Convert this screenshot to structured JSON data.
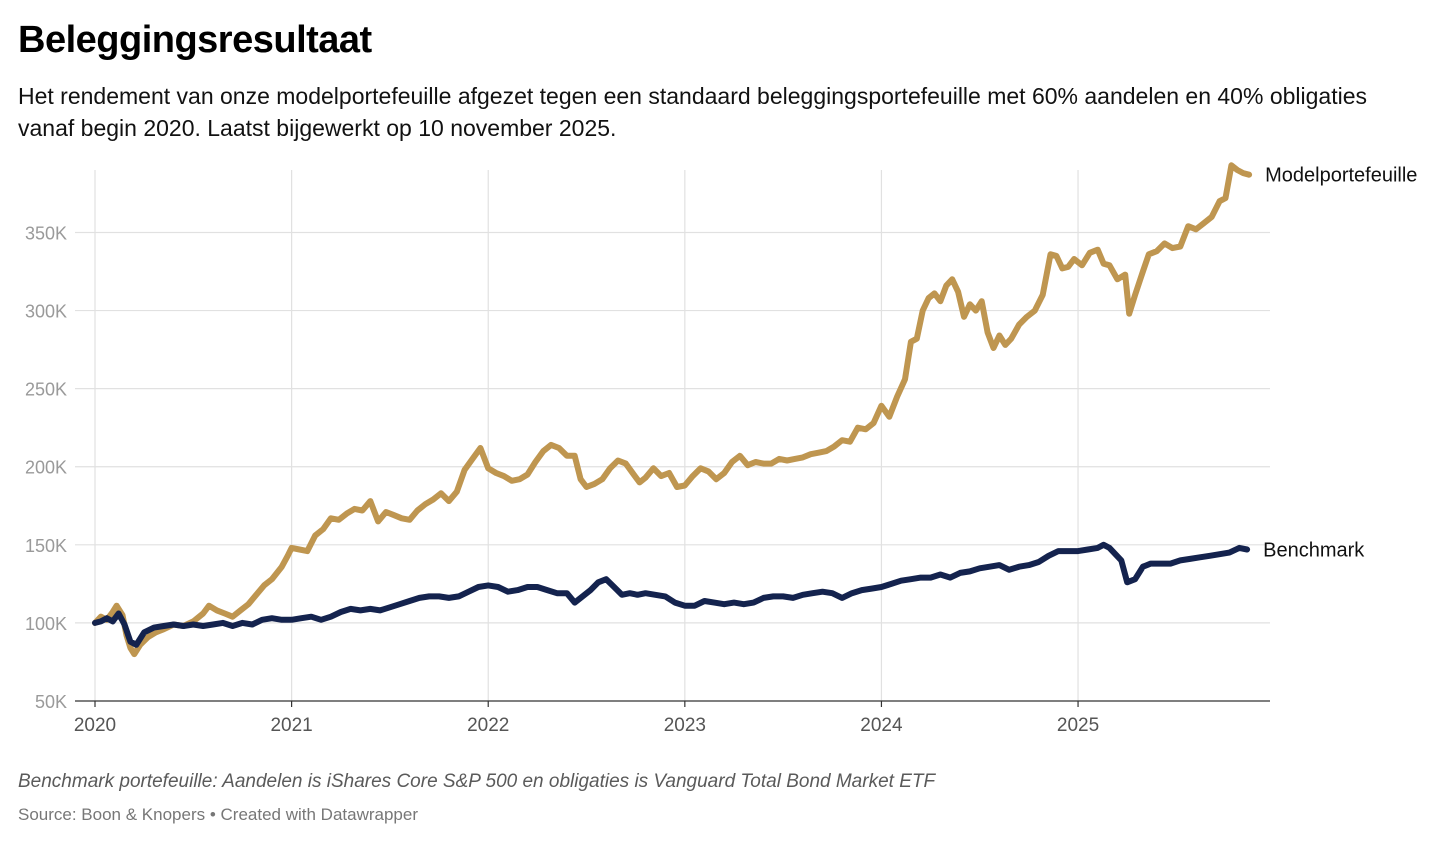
{
  "chart_data": {
    "type": "line",
    "title": "Beleggingsresultaat",
    "subtitle": "Het rendement van onze modelportefeuille afgezet tegen een standaard beleggingsportefeuille met 60% aandelen en 40% obligaties vanaf begin 2020. Laatst bijgewerkt op 10 november 2025.",
    "xlabel": "",
    "ylabel": "",
    "xlim": [
      2020.0,
      2025.9
    ],
    "ylim": [
      50000,
      390000
    ],
    "x_ticks": [
      2020,
      2021,
      2022,
      2023,
      2024,
      2025
    ],
    "x_tick_labels": [
      "2020",
      "2021",
      "2022",
      "2023",
      "2024",
      "2025"
    ],
    "y_ticks": [
      50000,
      100000,
      150000,
      200000,
      250000,
      300000,
      350000
    ],
    "y_tick_labels": [
      "50K",
      "100K",
      "150K",
      "200K",
      "250K",
      "300K",
      "350K"
    ],
    "grid": true,
    "legend": "direct labels at line ends (right)",
    "series": [
      {
        "name": "Modelportefeuille",
        "color": "#bf9650",
        "points": [
          [
            2020.0,
            100000
          ],
          [
            2020.03,
            104000
          ],
          [
            2020.06,
            102000
          ],
          [
            2020.09,
            107000
          ],
          [
            2020.11,
            111000
          ],
          [
            2020.14,
            105000
          ],
          [
            2020.16,
            92000
          ],
          [
            2020.18,
            84000
          ],
          [
            2020.2,
            80000
          ],
          [
            2020.23,
            86000
          ],
          [
            2020.27,
            91000
          ],
          [
            2020.31,
            94000
          ],
          [
            2020.35,
            96000
          ],
          [
            2020.4,
            99000
          ],
          [
            2020.45,
            98000
          ],
          [
            2020.5,
            101000
          ],
          [
            2020.55,
            106000
          ],
          [
            2020.58,
            111000
          ],
          [
            2020.62,
            108000
          ],
          [
            2020.66,
            106000
          ],
          [
            2020.7,
            104000
          ],
          [
            2020.74,
            108000
          ],
          [
            2020.78,
            112000
          ],
          [
            2020.82,
            118000
          ],
          [
            2020.86,
            124000
          ],
          [
            2020.9,
            128000
          ],
          [
            2020.95,
            136000
          ],
          [
            2020.98,
            143000
          ],
          [
            2021.0,
            148000
          ],
          [
            2021.04,
            147000
          ],
          [
            2021.08,
            146000
          ],
          [
            2021.12,
            156000
          ],
          [
            2021.16,
            160000
          ],
          [
            2021.2,
            167000
          ],
          [
            2021.24,
            166000
          ],
          [
            2021.28,
            170000
          ],
          [
            2021.32,
            173000
          ],
          [
            2021.36,
            172000
          ],
          [
            2021.4,
            178000
          ],
          [
            2021.44,
            165000
          ],
          [
            2021.48,
            171000
          ],
          [
            2021.52,
            169000
          ],
          [
            2021.56,
            167000
          ],
          [
            2021.6,
            166000
          ],
          [
            2021.64,
            172000
          ],
          [
            2021.68,
            176000
          ],
          [
            2021.72,
            179000
          ],
          [
            2021.76,
            183000
          ],
          [
            2021.8,
            178000
          ],
          [
            2021.84,
            184000
          ],
          [
            2021.88,
            198000
          ],
          [
            2021.92,
            205000
          ],
          [
            2021.96,
            212000
          ],
          [
            2022.0,
            199000
          ],
          [
            2022.04,
            196000
          ],
          [
            2022.08,
            194000
          ],
          [
            2022.12,
            191000
          ],
          [
            2022.16,
            192000
          ],
          [
            2022.2,
            195000
          ],
          [
            2022.24,
            203000
          ],
          [
            2022.28,
            210000
          ],
          [
            2022.32,
            214000
          ],
          [
            2022.36,
            212000
          ],
          [
            2022.4,
            207000
          ],
          [
            2022.44,
            207000
          ],
          [
            2022.47,
            192000
          ],
          [
            2022.5,
            187000
          ],
          [
            2022.54,
            189000
          ],
          [
            2022.58,
            192000
          ],
          [
            2022.62,
            199000
          ],
          [
            2022.66,
            204000
          ],
          [
            2022.7,
            202000
          ],
          [
            2022.74,
            195000
          ],
          [
            2022.77,
            190000
          ],
          [
            2022.8,
            193000
          ],
          [
            2022.84,
            199000
          ],
          [
            2022.88,
            194000
          ],
          [
            2022.92,
            196000
          ],
          [
            2022.96,
            187000
          ],
          [
            2023.0,
            188000
          ],
          [
            2023.04,
            194000
          ],
          [
            2023.08,
            199000
          ],
          [
            2023.12,
            197000
          ],
          [
            2023.16,
            192000
          ],
          [
            2023.2,
            196000
          ],
          [
            2023.24,
            203000
          ],
          [
            2023.28,
            207000
          ],
          [
            2023.32,
            201000
          ],
          [
            2023.36,
            203000
          ],
          [
            2023.4,
            202000
          ],
          [
            2023.44,
            202000
          ],
          [
            2023.48,
            205000
          ],
          [
            2023.52,
            204000
          ],
          [
            2023.56,
            205000
          ],
          [
            2023.6,
            206000
          ],
          [
            2023.64,
            208000
          ],
          [
            2023.68,
            209000
          ],
          [
            2023.72,
            210000
          ],
          [
            2023.76,
            213000
          ],
          [
            2023.8,
            217000
          ],
          [
            2023.84,
            216000
          ],
          [
            2023.88,
            225000
          ],
          [
            2023.92,
            224000
          ],
          [
            2023.96,
            228000
          ],
          [
            2024.0,
            239000
          ],
          [
            2024.04,
            232000
          ],
          [
            2024.08,
            245000
          ],
          [
            2024.12,
            256000
          ],
          [
            2024.15,
            280000
          ],
          [
            2024.18,
            282000
          ],
          [
            2024.21,
            300000
          ],
          [
            2024.24,
            308000
          ],
          [
            2024.27,
            311000
          ],
          [
            2024.3,
            306000
          ],
          [
            2024.33,
            316000
          ],
          [
            2024.36,
            320000
          ],
          [
            2024.39,
            312000
          ],
          [
            2024.42,
            296000
          ],
          [
            2024.45,
            304000
          ],
          [
            2024.48,
            300000
          ],
          [
            2024.51,
            306000
          ],
          [
            2024.54,
            286000
          ],
          [
            2024.57,
            276000
          ],
          [
            2024.6,
            284000
          ],
          [
            2024.63,
            278000
          ],
          [
            2024.66,
            282000
          ],
          [
            2024.7,
            291000
          ],
          [
            2024.74,
            296000
          ],
          [
            2024.78,
            300000
          ],
          [
            2024.82,
            310000
          ],
          [
            2024.86,
            336000
          ],
          [
            2024.89,
            335000
          ],
          [
            2024.92,
            327000
          ],
          [
            2024.95,
            328000
          ],
          [
            2024.98,
            333000
          ],
          [
            2025.02,
            329000
          ],
          [
            2025.06,
            337000
          ],
          [
            2025.1,
            339000
          ],
          [
            2025.13,
            330000
          ],
          [
            2025.16,
            329000
          ],
          [
            2025.2,
            320000
          ],
          [
            2025.24,
            323000
          ],
          [
            2025.26,
            298000
          ],
          [
            2025.29,
            310000
          ],
          [
            2025.33,
            325000
          ],
          [
            2025.36,
            336000
          ],
          [
            2025.4,
            338000
          ],
          [
            2025.44,
            343000
          ],
          [
            2025.48,
            340000
          ],
          [
            2025.52,
            341000
          ],
          [
            2025.56,
            354000
          ],
          [
            2025.6,
            352000
          ],
          [
            2025.64,
            356000
          ],
          [
            2025.68,
            360000
          ],
          [
            2025.72,
            370000
          ],
          [
            2025.75,
            372000
          ],
          [
            2025.78,
            393000
          ],
          [
            2025.81,
            390000
          ],
          [
            2025.84,
            388000
          ],
          [
            2025.87,
            387000
          ]
        ]
      },
      {
        "name": "Benchmark",
        "color": "#14234e",
        "points": [
          [
            2020.0,
            100000
          ],
          [
            2020.03,
            101000
          ],
          [
            2020.06,
            103000
          ],
          [
            2020.09,
            101000
          ],
          [
            2020.12,
            106000
          ],
          [
            2020.15,
            99000
          ],
          [
            2020.18,
            88000
          ],
          [
            2020.21,
            86000
          ],
          [
            2020.25,
            94000
          ],
          [
            2020.3,
            97000
          ],
          [
            2020.35,
            98000
          ],
          [
            2020.4,
            99000
          ],
          [
            2020.45,
            98000
          ],
          [
            2020.5,
            99000
          ],
          [
            2020.55,
            98000
          ],
          [
            2020.6,
            99000
          ],
          [
            2020.65,
            100000
          ],
          [
            2020.7,
            98000
          ],
          [
            2020.75,
            100000
          ],
          [
            2020.8,
            99000
          ],
          [
            2020.85,
            102000
          ],
          [
            2020.9,
            103000
          ],
          [
            2020.95,
            102000
          ],
          [
            2021.0,
            102000
          ],
          [
            2021.05,
            103000
          ],
          [
            2021.1,
            104000
          ],
          [
            2021.15,
            102000
          ],
          [
            2021.2,
            104000
          ],
          [
            2021.25,
            107000
          ],
          [
            2021.3,
            109000
          ],
          [
            2021.35,
            108000
          ],
          [
            2021.4,
            109000
          ],
          [
            2021.45,
            108000
          ],
          [
            2021.5,
            110000
          ],
          [
            2021.55,
            112000
          ],
          [
            2021.6,
            114000
          ],
          [
            2021.65,
            116000
          ],
          [
            2021.7,
            117000
          ],
          [
            2021.75,
            117000
          ],
          [
            2021.8,
            116000
          ],
          [
            2021.85,
            117000
          ],
          [
            2021.9,
            120000
          ],
          [
            2021.95,
            123000
          ],
          [
            2022.0,
            124000
          ],
          [
            2022.05,
            123000
          ],
          [
            2022.1,
            120000
          ],
          [
            2022.15,
            121000
          ],
          [
            2022.2,
            123000
          ],
          [
            2022.25,
            123000
          ],
          [
            2022.3,
            121000
          ],
          [
            2022.35,
            119000
          ],
          [
            2022.4,
            119000
          ],
          [
            2022.44,
            113000
          ],
          [
            2022.48,
            117000
          ],
          [
            2022.52,
            121000
          ],
          [
            2022.56,
            126000
          ],
          [
            2022.6,
            128000
          ],
          [
            2022.64,
            123000
          ],
          [
            2022.68,
            118000
          ],
          [
            2022.72,
            119000
          ],
          [
            2022.76,
            118000
          ],
          [
            2022.8,
            119000
          ],
          [
            2022.85,
            118000
          ],
          [
            2022.9,
            117000
          ],
          [
            2022.95,
            113000
          ],
          [
            2023.0,
            111000
          ],
          [
            2023.05,
            111000
          ],
          [
            2023.1,
            114000
          ],
          [
            2023.15,
            113000
          ],
          [
            2023.2,
            112000
          ],
          [
            2023.25,
            113000
          ],
          [
            2023.3,
            112000
          ],
          [
            2023.35,
            113000
          ],
          [
            2023.4,
            116000
          ],
          [
            2023.45,
            117000
          ],
          [
            2023.5,
            117000
          ],
          [
            2023.55,
            116000
          ],
          [
            2023.6,
            118000
          ],
          [
            2023.65,
            119000
          ],
          [
            2023.7,
            120000
          ],
          [
            2023.75,
            119000
          ],
          [
            2023.8,
            116000
          ],
          [
            2023.85,
            119000
          ],
          [
            2023.9,
            121000
          ],
          [
            2023.95,
            122000
          ],
          [
            2024.0,
            123000
          ],
          [
            2024.05,
            125000
          ],
          [
            2024.1,
            127000
          ],
          [
            2024.15,
            128000
          ],
          [
            2024.2,
            129000
          ],
          [
            2024.25,
            129000
          ],
          [
            2024.3,
            131000
          ],
          [
            2024.35,
            129000
          ],
          [
            2024.4,
            132000
          ],
          [
            2024.45,
            133000
          ],
          [
            2024.5,
            135000
          ],
          [
            2024.55,
            136000
          ],
          [
            2024.6,
            137000
          ],
          [
            2024.65,
            134000
          ],
          [
            2024.7,
            136000
          ],
          [
            2024.75,
            137000
          ],
          [
            2024.8,
            139000
          ],
          [
            2024.85,
            143000
          ],
          [
            2024.9,
            146000
          ],
          [
            2024.95,
            146000
          ],
          [
            2025.0,
            146000
          ],
          [
            2025.05,
            147000
          ],
          [
            2025.1,
            148000
          ],
          [
            2025.13,
            150000
          ],
          [
            2025.16,
            148000
          ],
          [
            2025.19,
            144000
          ],
          [
            2025.22,
            140000
          ],
          [
            2025.25,
            126000
          ],
          [
            2025.29,
            128000
          ],
          [
            2025.33,
            136000
          ],
          [
            2025.37,
            138000
          ],
          [
            2025.42,
            138000
          ],
          [
            2025.47,
            138000
          ],
          [
            2025.52,
            140000
          ],
          [
            2025.57,
            141000
          ],
          [
            2025.62,
            142000
          ],
          [
            2025.67,
            143000
          ],
          [
            2025.72,
            144000
          ],
          [
            2025.77,
            145000
          ],
          [
            2025.82,
            148000
          ],
          [
            2025.86,
            147000
          ]
        ]
      }
    ],
    "footnote": "Benchmark portefeuille: Aandelen is iShares Core S&P 500 en obligaties is Vanguard Total Bond Market ETF",
    "source": "Source: Boon & Knopers • Created with Datawrapper"
  }
}
